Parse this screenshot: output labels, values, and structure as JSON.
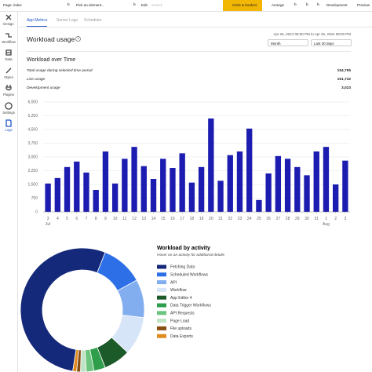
{
  "topbar": {
    "page": "Page: index",
    "element": "Pick an element...",
    "edit": "Edit",
    "search": "Search",
    "grids": "Grids & borders",
    "arrange": "Arrange",
    "env": "Development",
    "preview": "Preview"
  },
  "sidebar": [
    "Design",
    "Workflow",
    "Data",
    "Styles",
    "Plugins",
    "Settings",
    "Logs"
  ],
  "tabs": [
    "App Metrics",
    "Server Logs",
    "Scheduler"
  ],
  "header": {
    "title": "Workload usage",
    "date_range": "Apr 26, 2024 08:00 PM to Apr 26, 2024 08:00 PM",
    "interval": "Month",
    "period": "Last 30 days"
  },
  "summary": {
    "title": "Workload over Time",
    "rows": [
      {
        "label": "Total usage during selected time period",
        "value": "154,755"
      },
      {
        "label": "Live usage",
        "value": "151,732"
      },
      {
        "label": "Development usage",
        "value": "3,023"
      }
    ]
  },
  "chart_data": [
    {
      "type": "bar",
      "color": "#1c1cb0",
      "categories": [
        "3",
        "4",
        "5",
        "6",
        "7",
        "8",
        "9",
        "10",
        "11",
        "12",
        "13",
        "14",
        "15",
        "16",
        "17",
        "18",
        "19",
        "20",
        "21",
        "22",
        "23",
        "24",
        "25",
        "26",
        "27",
        "28",
        "29",
        "30",
        "31",
        "1",
        "2",
        "3"
      ],
      "x_sublabels": [
        "Jul",
        null,
        null,
        null,
        null,
        null,
        null,
        null,
        null,
        null,
        null,
        null,
        null,
        null,
        null,
        null,
        null,
        null,
        null,
        null,
        null,
        null,
        null,
        null,
        null,
        null,
        null,
        null,
        null,
        "Aug",
        null,
        null
      ],
      "values": [
        1550,
        1850,
        2450,
        2750,
        2150,
        1200,
        3300,
        1550,
        2900,
        3550,
        2500,
        1800,
        2900,
        2400,
        3200,
        1600,
        2450,
        5100,
        1700,
        3100,
        3300,
        4550,
        650,
        2100,
        3050,
        2900,
        2450,
        2000,
        3300,
        3550,
        1500,
        2800
      ],
      "ylim": [
        0,
        6000
      ],
      "yticks": [
        0,
        750,
        {
          "value": 1500,
          "label": "1,500"
        },
        {
          "value": 2250,
          "label": "2,250"
        },
        {
          "value": 3000,
          "label": "3,000"
        },
        {
          "value": 3750,
          "label": "3,750"
        },
        {
          "value": 4500,
          "label": "4,500"
        },
        {
          "value": 5250,
          "label": "5,250"
        },
        {
          "value": 6000,
          "label": "6,000"
        }
      ],
      "grid": true
    },
    {
      "type": "pie",
      "title": "Workload by activity",
      "subtitle": "Hover on an activity for additional details",
      "categories": [
        "Fetching Data",
        "Scheduled Workflows",
        "API",
        "Workflow",
        "App Editor 4",
        "Data Trigger Workflows",
        "API Requests",
        "Page Load",
        "File uploads",
        "Data Exports"
      ],
      "values": [
        53.5,
        11,
        10,
        10,
        7,
        3,
        2,
        1.5,
        1,
        1
      ],
      "colors": [
        "#15297a",
        "#2d6fe6",
        "#82aef0",
        "#d6e5f8",
        "#1d5a2a",
        "#2f9e4b",
        "#6cc47e",
        "#bfe3c5",
        "#8a4d12",
        "#e08a1e"
      ]
    }
  ]
}
